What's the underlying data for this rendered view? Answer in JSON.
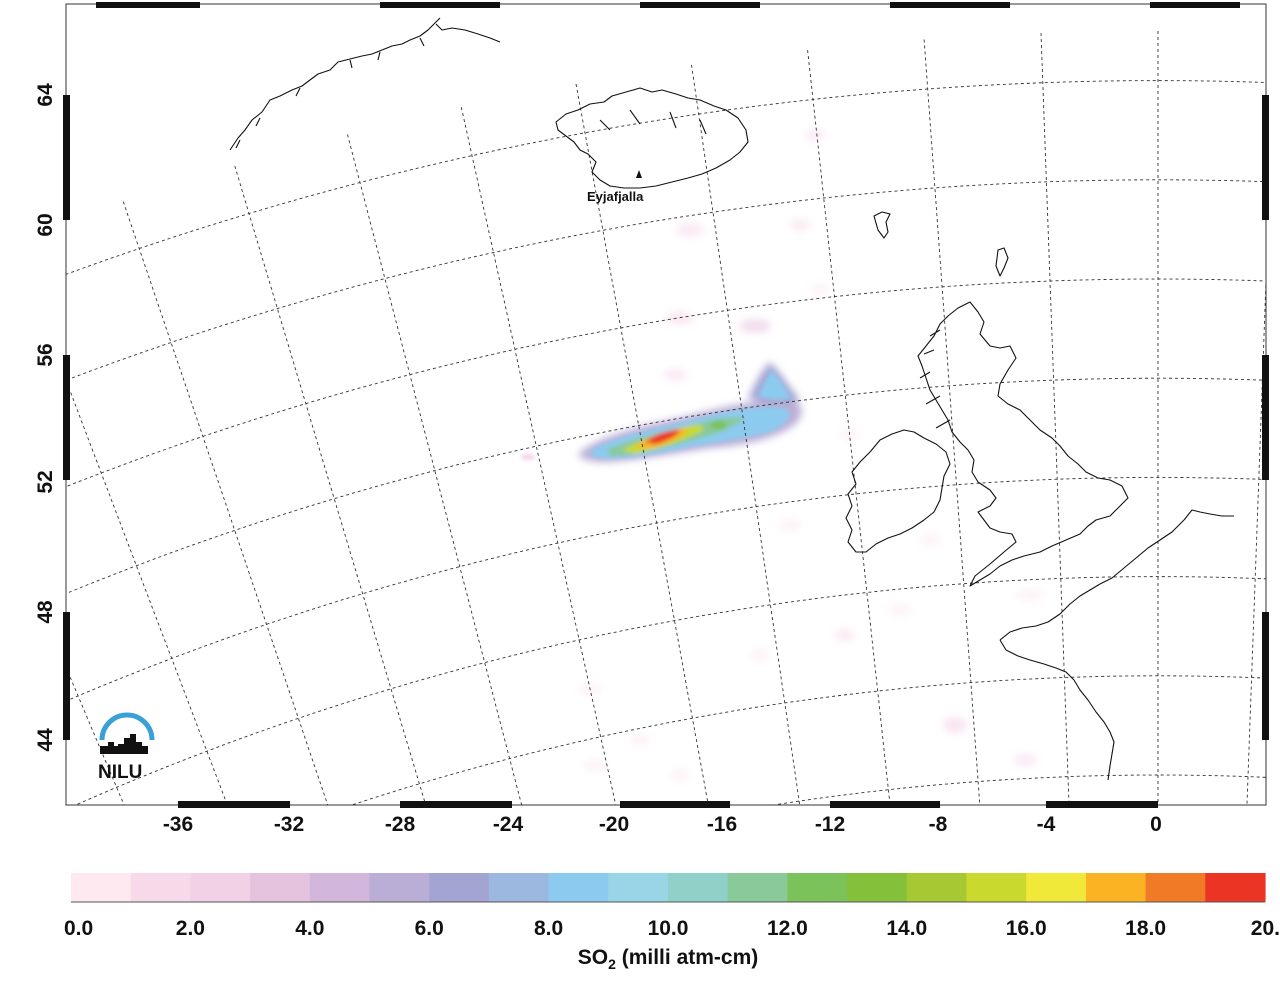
{
  "map": {
    "latitude_ticks": [
      "64",
      "60",
      "56",
      "52",
      "48",
      "44"
    ],
    "longitude_ticks": [
      "-36",
      "-32",
      "-28",
      "-24",
      "-20",
      "-16",
      "-12",
      "-8",
      "-4",
      "0"
    ],
    "place_label": "Eyjafjalla",
    "logo_text": "NILU",
    "coastline_color": "#111111",
    "graticule_style": "dotted"
  },
  "colorbar": {
    "tick_labels": [
      "0.0",
      "2.0",
      "4.0",
      "6.0",
      "8.0",
      "10.0",
      "12.0",
      "14.0",
      "16.0",
      "18.0",
      "20."
    ],
    "title_prefix": "SO",
    "title_subscript": "2",
    "title_suffix": " (milli atm-cm)",
    "colors": [
      "#fde9ef",
      "#f7d9ea",
      "#f2d0e6",
      "#e5c3df",
      "#d2b6db",
      "#bbaed6",
      "#a4a4d2",
      "#9db8e0",
      "#8ccbef",
      "#98d6e7",
      "#8fd1c9",
      "#89c99a",
      "#7cc25b",
      "#85c03a",
      "#a6c833",
      "#c9d92e",
      "#f1e93a",
      "#fbb324",
      "#f17a27",
      "#ec3425"
    ]
  }
}
